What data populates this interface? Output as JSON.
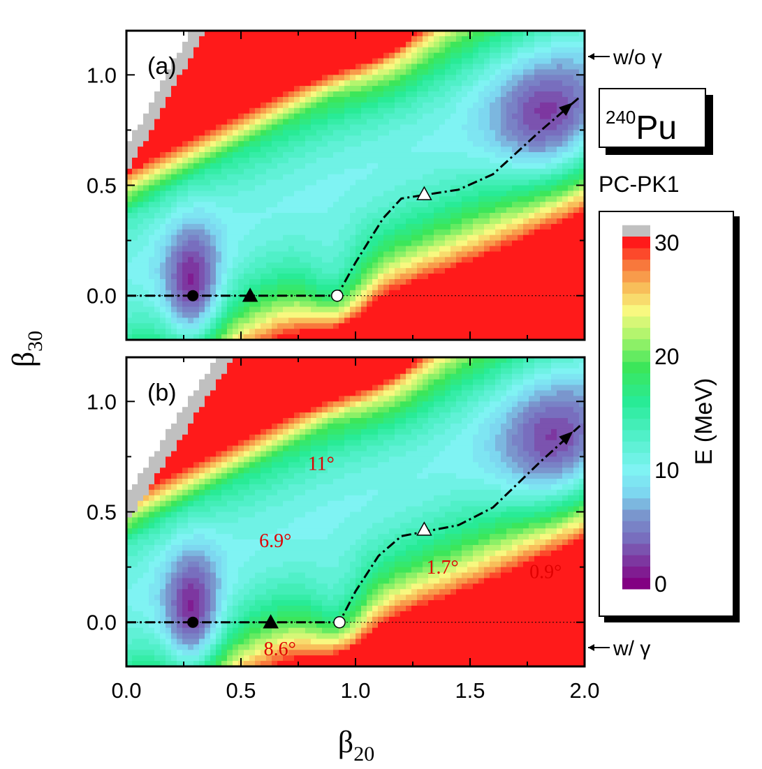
{
  "nucleus": {
    "mass": "240",
    "symbol": "Pu"
  },
  "model": "PC-PK1",
  "annotations": {
    "wo_gamma": "w/o γ",
    "w_gamma": "w/ γ"
  },
  "colors": {
    "purple": "#820082",
    "blue": "#7a8fc7",
    "cyan": "#7ff3f3",
    "green": "#20e880",
    "yellow": "#f8f880",
    "orange": "#f8a040",
    "red": "#ff1a1a",
    "gray": "#c0c0c0",
    "angle_label": "#e00000"
  },
  "colorbar": {
    "label": "E (MeV)",
    "range": [
      0,
      30
    ],
    "tick_labels": [
      "0",
      "10",
      "20",
      "30"
    ],
    "tick_values": [
      0,
      10,
      20,
      30
    ]
  },
  "chart_data": {
    "type": "heatmap",
    "xlabel": "β20",
    "ylabel": "β30",
    "xlim": [
      0.0,
      2.0
    ],
    "ylim": [
      -0.2,
      1.2
    ],
    "x_ticks": [
      "0.0",
      "0.5",
      "1.0",
      "1.5",
      "2.0"
    ],
    "y_ticks": [
      "0.0",
      "0.5",
      "1.0"
    ],
    "contour_step_MeV": 1,
    "panels": [
      {
        "label": "(a)",
        "minima": [
          {
            "name": "ground state",
            "beta20": 0.29,
            "beta30": 0.0,
            "marker": "filled-circle"
          },
          {
            "name": "isomer",
            "beta20": 0.92,
            "beta30": 0.0,
            "marker": "open-circle"
          },
          {
            "name": "outer",
            "beta20": 1.85,
            "beta30": 0.78,
            "marker": "none"
          }
        ],
        "saddles": [
          {
            "name": "inner barrier",
            "beta20": 0.54,
            "beta30": 0.0,
            "marker": "filled-triangle"
          },
          {
            "name": "outer barrier",
            "beta20": 1.3,
            "beta30": 0.46,
            "marker": "open-triangle"
          }
        ],
        "fission_path": [
          [
            0.0,
            0.0
          ],
          [
            0.92,
            0.0
          ],
          [
            1.0,
            0.15
          ],
          [
            1.12,
            0.35
          ],
          [
            1.2,
            0.44
          ],
          [
            1.45,
            0.48
          ],
          [
            1.6,
            0.55
          ],
          [
            1.8,
            0.74
          ],
          [
            1.98,
            0.9
          ]
        ],
        "angle_labels": []
      },
      {
        "label": "(b)",
        "minima": [
          {
            "name": "ground state",
            "beta20": 0.29,
            "beta30": 0.0,
            "marker": "filled-circle"
          },
          {
            "name": "isomer",
            "beta20": 0.93,
            "beta30": 0.0,
            "marker": "open-circle"
          },
          {
            "name": "outer",
            "beta20": 1.88,
            "beta30": 0.78,
            "marker": "none"
          }
        ],
        "saddles": [
          {
            "name": "inner barrier",
            "beta20": 0.63,
            "beta30": 0.0,
            "marker": "filled-triangle"
          },
          {
            "name": "outer barrier",
            "beta20": 1.3,
            "beta30": 0.42,
            "marker": "open-triangle"
          }
        ],
        "fission_path": [
          [
            0.0,
            0.0
          ],
          [
            0.93,
            0.0
          ],
          [
            1.0,
            0.14
          ],
          [
            1.1,
            0.3
          ],
          [
            1.2,
            0.39
          ],
          [
            1.45,
            0.44
          ],
          [
            1.6,
            0.52
          ],
          [
            1.8,
            0.72
          ],
          [
            1.98,
            0.89
          ]
        ],
        "angle_labels": [
          {
            "text": "11°",
            "beta20": 0.85,
            "beta30": 0.69
          },
          {
            "text": "6.9°",
            "beta20": 0.65,
            "beta30": 0.34
          },
          {
            "text": "1.7°",
            "beta20": 1.38,
            "beta30": 0.22
          },
          {
            "text": "0.9°",
            "beta20": 1.83,
            "beta30": 0.2
          },
          {
            "text": "8.6°",
            "beta20": 0.67,
            "beta30": -0.15
          }
        ]
      }
    ]
  }
}
